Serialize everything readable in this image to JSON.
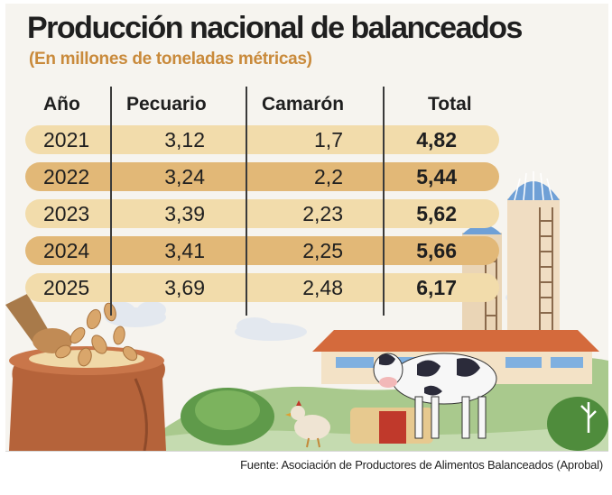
{
  "source": "Fuente: Asociación de Productores de Alimentos Balanceados (Aprobal)",
  "colors": {
    "row_light": "#f2dcab",
    "row_dark": "#e2b877",
    "subtitle": "#c98a3b"
  },
  "chart_data": {
    "type": "table",
    "title": "Producción nacional de balanceados",
    "subtitle": "(En millones de toneladas métricas)",
    "columns": [
      "Año",
      "Pecuario",
      "Camarón",
      "Total"
    ],
    "rows": [
      [
        "2021",
        "3,12",
        "1,7",
        "4,82"
      ],
      [
        "2022",
        "3,24",
        "2,2",
        "5,44"
      ],
      [
        "2023",
        "3,39",
        "2,23",
        "5,62"
      ],
      [
        "2024",
        "3,41",
        "2,25",
        "5,66"
      ],
      [
        "2025",
        "3,69",
        "2,48",
        "6,17"
      ]
    ],
    "values": {
      "Pecuario": [
        3.12,
        3.24,
        3.39,
        3.41,
        3.69
      ],
      "Camarón": [
        1.7,
        2.2,
        2.23,
        2.25,
        2.48
      ],
      "Total": [
        4.82,
        5.44,
        5.62,
        5.66,
        6.17
      ]
    },
    "categories": [
      "2021",
      "2022",
      "2023",
      "2024",
      "2025"
    ]
  }
}
